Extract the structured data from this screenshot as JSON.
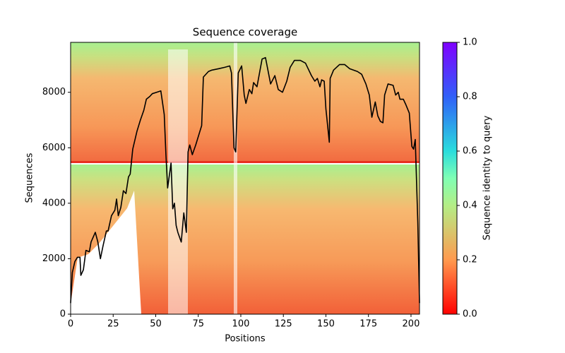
{
  "chart_data": {
    "type": "line",
    "title": "Sequence coverage",
    "x_label": "Positions",
    "y_label": "Sequences",
    "x": [
      0,
      1,
      2.5,
      4,
      5.5,
      6,
      7.5,
      9,
      11,
      12,
      14.5,
      16,
      17.5,
      19,
      21,
      22,
      24,
      26,
      27,
      28,
      29.5,
      31,
      32.5,
      34,
      35,
      36.5,
      39,
      41,
      43,
      44.5,
      46.5,
      48,
      50.5,
      53,
      55,
      56,
      57,
      59,
      60,
      61,
      62,
      63,
      65,
      66.5,
      68,
      69,
      70,
      71.5,
      73.5,
      75.5,
      77,
      78,
      81,
      83,
      87,
      90.5,
      93.5,
      94.5,
      96,
      97,
      98.5,
      100.5,
      102,
      103,
      105,
      106.5,
      107.5,
      109.5,
      112.5,
      114.5,
      117.5,
      120,
      122,
      124.5,
      127,
      129,
      131.5,
      135,
      138,
      141.5,
      143.5,
      145,
      146.5,
      147.5,
      149,
      150,
      152,
      152.5,
      154.5,
      158,
      161,
      164,
      168.5,
      171,
      173.5,
      175.5,
      177,
      179,
      180.5,
      182,
      183.5,
      184.5,
      186.5,
      189.5,
      191,
      192.5,
      193.5,
      195.5,
      197,
      199,
      200.5,
      201.5,
      202.5,
      204,
      205
    ],
    "values": [
      400,
      1500,
      1900,
      2050,
      2050,
      1400,
      1600,
      2300,
      2250,
      2600,
      2950,
      2600,
      2000,
      2450,
      3000,
      3000,
      3550,
      3750,
      4150,
      3550,
      3850,
      4450,
      4350,
      4950,
      5050,
      5950,
      6600,
      7000,
      7350,
      7750,
      7850,
      7950,
      8000,
      8050,
      7200,
      5750,
      4550,
      5450,
      3800,
      4000,
      3200,
      2950,
      2600,
      3650,
      2950,
      5850,
      6100,
      5750,
      6100,
      6500,
      6800,
      8550,
      8750,
      8800,
      8850,
      8900,
      8950,
      8700,
      6000,
      5850,
      8700,
      8950,
      7900,
      7600,
      8100,
      7950,
      8350,
      8200,
      9200,
      9250,
      8300,
      8600,
      8100,
      8000,
      8400,
      8900,
      9150,
      9150,
      9050,
      8600,
      8400,
      8500,
      8200,
      8450,
      8400,
      7400,
      6200,
      8500,
      8800,
      9000,
      9000,
      8850,
      8750,
      8650,
      8300,
      7900,
      7100,
      7650,
      7150,
      6950,
      6900,
      7900,
      8300,
      8250,
      7900,
      8000,
      7750,
      7750,
      7550,
      7250,
      6050,
      5950,
      6300,
      3300,
      400
    ],
    "color": "#000000",
    "xlim": [
      0,
      205
    ],
    "xticks": [
      0,
      25,
      50,
      75,
      100,
      125,
      150,
      175,
      200
    ],
    "ylim": [
      0,
      9800
    ],
    "yticks": [
      0,
      2000,
      4000,
      6000,
      8000
    ],
    "colorbar": {
      "label": "Sequence identity to query",
      "lim": [
        0,
        1
      ],
      "ticks": [
        {
          "value": 0,
          "label": "0.0"
        },
        {
          "value": 0.2,
          "label": "0.2"
        },
        {
          "value": 0.4,
          "label": "0.4"
        },
        {
          "value": 0.6,
          "label": "0.6"
        },
        {
          "value": 0.8,
          "label": "0.8"
        },
        {
          "value": 1,
          "label": "1.0"
        }
      ]
    }
  }
}
